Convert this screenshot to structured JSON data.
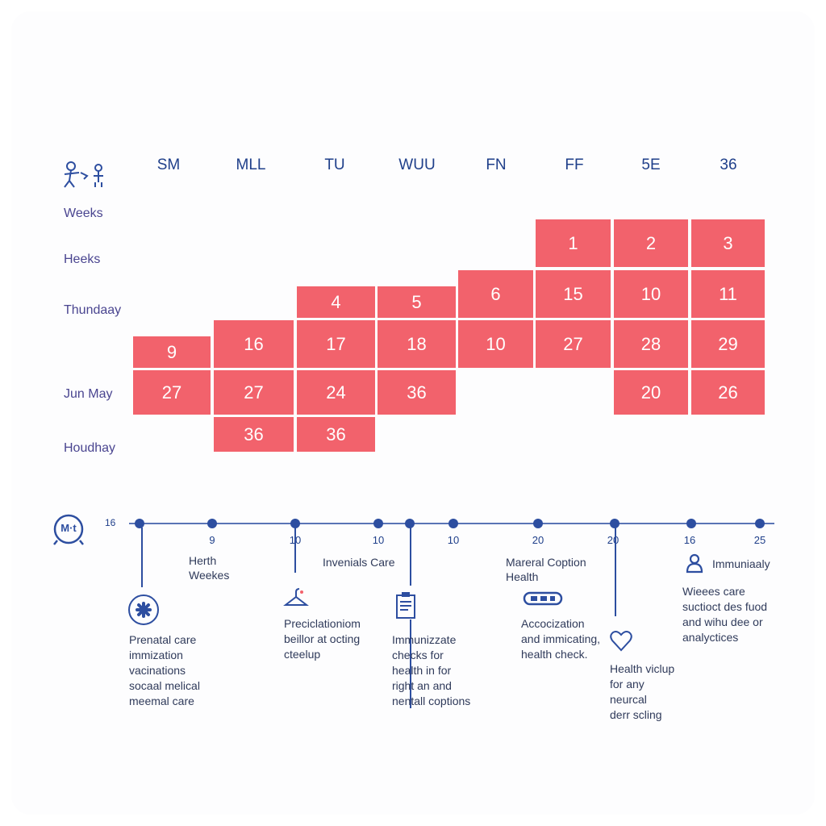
{
  "calendar": {
    "day_headers": [
      "SM",
      "MLL",
      "TU",
      "WUU",
      "FN",
      "FF",
      "5E",
      "36"
    ],
    "row_labels": [
      "Weeks",
      "Heeks",
      "Thundaay",
      "Jun May",
      "Houdhay"
    ],
    "cells": [
      {
        "value": "1"
      },
      {
        "value": "2"
      },
      {
        "value": "3"
      },
      {
        "value": "4"
      },
      {
        "value": "5"
      },
      {
        "value": "6"
      },
      {
        "value": "15"
      },
      {
        "value": "10"
      },
      {
        "value": "11"
      },
      {
        "value": "9"
      },
      {
        "value": "16"
      },
      {
        "value": "17"
      },
      {
        "value": "18"
      },
      {
        "value": "10"
      },
      {
        "value": "27"
      },
      {
        "value": "28"
      },
      {
        "value": "29"
      },
      {
        "value": "27"
      },
      {
        "value": "27"
      },
      {
        "value": "24"
      },
      {
        "value": "36"
      },
      {
        "value": "20"
      },
      {
        "value": "26"
      },
      {
        "value": "36"
      },
      {
        "value": "36"
      }
    ],
    "cell_color": "#f2626c"
  },
  "timeline": {
    "icon_label": "M·t",
    "start_label": "16",
    "tick_labels": [
      "9",
      "10",
      "10",
      "10",
      "20",
      "20",
      "16",
      "25"
    ],
    "labels": [
      "Herth\nWeekes",
      "Invenials Care",
      "Mareral Coption\nHealth",
      "Immuniaaly"
    ],
    "descriptions": [
      "Prenatal care\nimmization\nvacinations\nsocaal melical\nmeemal care",
      "Preciclationiom\nbeillor at octing\ncteelup",
      "Immunizzate\nchecks for\nhealth in for\nright an and\nnentall coptions",
      "Accocization\nand immicating,\nhealth check.",
      "Health viclup\nfor any\nneurcal\nderr scling",
      "Wieees care\nsuctioct des fuod\nand wihu dee or\nanalyctices"
    ],
    "accent_color": "#2d4ea0"
  }
}
